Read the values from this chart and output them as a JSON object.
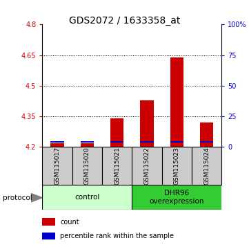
{
  "title": "GDS2072 / 1633358_at",
  "samples": [
    "GSM115017",
    "GSM115020",
    "GSM115021",
    "GSM115022",
    "GSM115023",
    "GSM115024"
  ],
  "count_values": [
    4.22,
    4.22,
    4.34,
    4.43,
    4.64,
    4.32
  ],
  "ymin": 4.2,
  "ymax": 4.8,
  "yticks": [
    4.2,
    4.35,
    4.5,
    4.65,
    4.8
  ],
  "ytick_labels": [
    "4.2",
    "4.35",
    "4.5",
    "4.65",
    "4.8"
  ],
  "right_yticks": [
    0,
    25,
    50,
    75,
    100
  ],
  "right_ytick_labels": [
    "0",
    "25",
    "50",
    "75",
    "100%"
  ],
  "bar_bottom": 4.2,
  "bar_width": 0.45,
  "red_color": "#cc0000",
  "blue_color": "#0000cc",
  "control_label": "control",
  "overexp_label": "DHR96\noverexpression",
  "protocol_label": "protocol",
  "legend_count": "count",
  "legend_percentile": "percentile rank within the sample",
  "control_bg": "#ccffcc",
  "overexp_bg": "#33cc33",
  "sample_bg": "#cccccc",
  "blue_bar_height": 0.008,
  "blue_bar_value": 4.225,
  "title_fontsize": 10,
  "tick_fontsize": 7,
  "label_fontsize": 6.5,
  "proto_fontsize": 7.5,
  "legend_fontsize": 7
}
